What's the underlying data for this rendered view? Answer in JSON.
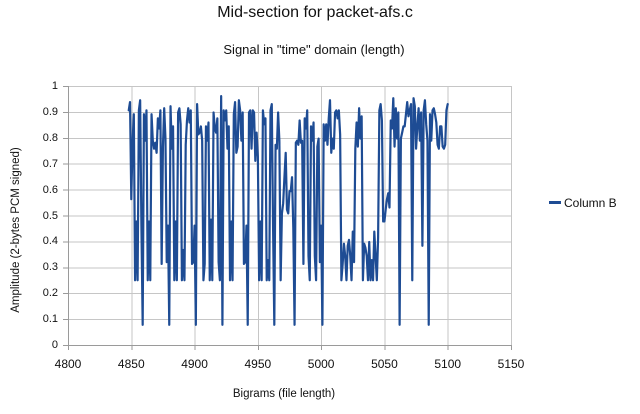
{
  "header": {
    "title": "Mid-section for packet-afs.c",
    "subtitle": "Signal in \"time\" domain (length)"
  },
  "colors": {
    "line": "#1e4c94",
    "grid": "#c6c6c6",
    "axis": "#9a9a9a",
    "text": "#111111",
    "background": "#ffffff"
  },
  "chart_data": {
    "type": "line",
    "title": "Mid-section for packet-afs.c",
    "subtitle": "Signal in \"time\" domain (length)",
    "xlabel": "Bigrams (file length)",
    "ylabel": "Amplitude (2-bytes PCM signed)",
    "xlim": [
      4800,
      5150
    ],
    "ylim": [
      0,
      1
    ],
    "xticks": [
      4800,
      4850,
      4900,
      4950,
      5000,
      5050,
      5100,
      5150
    ],
    "xtick_labels": [
      "4800",
      "4850",
      "4900",
      "4950",
      "5000",
      "5050",
      "5100",
      "5150"
    ],
    "yticks": [
      0,
      0.1,
      0.2,
      0.3,
      0.4,
      0.5,
      0.6,
      0.7,
      0.8,
      0.9,
      1
    ],
    "ytick_labels": [
      "0",
      "0.1",
      "0.2",
      "0.3",
      "0.4",
      "0.5",
      "0.6",
      "0.7",
      "0.8",
      "0.9",
      "1"
    ],
    "grid": true,
    "legend": {
      "position": "right",
      "entries": [
        {
          "label": "Column B",
          "color": "#1e4c94"
        }
      ]
    },
    "series": [
      {
        "name": "Column B",
        "color": "#1e4c94",
        "x_start": 4848,
        "x_step": 1,
        "y": [
          0.906,
          0.938,
          0.563,
          0.781,
          0.891,
          0.25,
          0.477,
          0.25,
          0.906,
          0.945,
          0.461,
          0.078,
          0.891,
          0.789,
          0.906,
          0.25,
          0.477,
          0.25,
          0.891,
          0.789,
          0.758,
          0.781,
          0.742,
          0.875,
          0.836,
          0.906,
          0.313,
          0.766,
          0.914,
          0.797,
          0.32,
          0.461,
          0.078,
          0.922,
          0.758,
          0.844,
          0.25,
          0.477,
          0.25,
          0.898,
          0.914,
          0.852,
          0.25,
          0.367,
          0.25,
          0.773,
          0.867,
          0.914,
          0.859,
          0.906,
          0.313,
          0.32,
          0.461,
          0.078,
          0.93,
          0.813,
          0.82,
          0.844,
          0.789,
          0.25,
          0.313,
          0.844,
          0.789,
          0.859,
          0.25,
          0.484,
          0.25,
          0.898,
          0.836,
          0.82,
          0.875,
          0.32,
          0.25,
          0.961,
          0.078,
          0.906,
          0.867,
          0.906,
          0.758,
          0.844,
          0.25,
          0.477,
          0.25,
          0.891,
          0.938,
          0.742,
          0.766,
          0.945,
          0.906,
          0.789,
          0.898,
          0.313,
          0.32,
          0.461,
          0.078,
          0.898,
          0.906,
          0.758,
          0.906,
          0.898,
          0.711,
          0.82,
          0.727,
          0.25,
          0.477,
          0.25,
          0.906,
          0.852,
          0.875,
          0.25,
          0.328,
          0.25,
          0.906,
          0.93,
          0.461,
          0.078,
          0.773,
          0.758,
          0.898,
          0.789,
          0.25,
          0.508,
          0.547,
          0.648,
          0.742,
          0.523,
          0.508,
          0.594,
          0.594,
          0.648,
          0.453,
          0.078,
          0.781,
          0.789,
          0.773,
          0.867,
          0.781,
          0.789,
          0.313,
          0.875,
          0.836,
          0.906,
          0.344,
          0.25,
          0.844,
          0.789,
          0.859,
          0.344,
          0.25,
          0.766,
          0.797,
          0.32,
          0.461,
          0.078,
          0.852,
          0.789,
          0.852,
          0.773,
          0.875,
          0.945,
          0.742,
          0.797,
          0.758,
          0.898,
          0.906,
          0.875,
          0.906,
          0.813,
          0.25,
          0.313,
          0.391,
          0.344,
          0.25,
          0.383,
          0.406,
          0.344,
          0.25,
          0.438,
          0.32,
          0.758,
          0.859,
          0.766,
          0.914,
          0.797,
          0.883,
          0.25,
          0.391,
          0.375,
          0.344,
          0.25,
          0.398,
          0.25,
          0.328,
          0.25,
          0.438,
          0.344,
          0.25,
          0.414,
          0.906,
          0.93,
          0.867,
          0.477,
          0.477,
          0.523,
          0.563,
          0.586,
          0.531,
          0.867,
          0.836,
          0.953,
          0.766,
          0.914,
          0.797,
          0.898,
          0.078,
          0.797,
          0.82,
          0.844,
          0.844,
          0.891,
          0.938,
          0.883,
          0.906,
          0.93,
          0.25,
          0.953,
          0.922,
          0.758,
          0.844,
          0.914,
          0.789,
          0.898,
          0.383,
          0.906,
          0.945,
          0.852,
          0.789,
          0.078,
          0.891,
          0.789,
          0.906,
          0.914,
          0.891,
          0.859,
          0.773,
          0.758,
          0.844,
          0.844,
          0.766,
          0.758,
          0.773,
          0.906,
          0.93
        ]
      }
    ]
  }
}
